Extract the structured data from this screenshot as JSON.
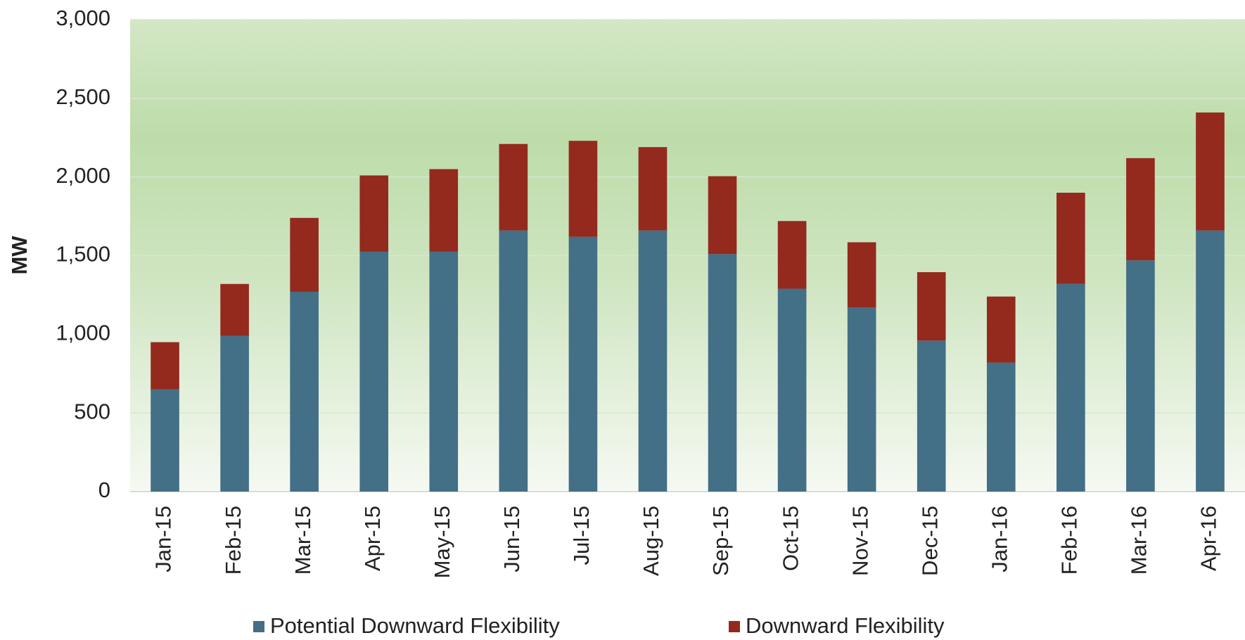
{
  "chart_data": {
    "type": "stacked_bar",
    "ylabel": "MW",
    "categories": [
      "Jan-15",
      "Feb-15",
      "Mar-15",
      "Apr-15",
      "May-15",
      "Jun-15",
      "Jul-15",
      "Aug-15",
      "Sep-15",
      "Oct-15",
      "Nov-15",
      "Dec-15",
      "Jan-16",
      "Feb-16",
      "Mar-16",
      "Apr-16"
    ],
    "series": [
      {
        "name": "Potential Downward Flexibility",
        "color": "#436f87",
        "values": [
          650,
          990,
          1270,
          1525,
          1525,
          1660,
          1620,
          1660,
          1510,
          1290,
          1170,
          960,
          820,
          1320,
          1470,
          1660
        ]
      },
      {
        "name": "Downward Flexibility",
        "color": "#94291e",
        "values": [
          300,
          330,
          470,
          485,
          525,
          550,
          610,
          530,
          495,
          430,
          415,
          435,
          420,
          580,
          650,
          750
        ]
      }
    ],
    "ylim": [
      0,
      3000
    ],
    "yticks": [
      0,
      500,
      {
        "value": 1000,
        "label": "1,000"
      },
      {
        "value": 1500,
        "label": "1,500"
      },
      {
        "value": 2000,
        "label": "2,000"
      },
      {
        "value": 2500,
        "label": "2,500"
      },
      {
        "value": 3000,
        "label": "3,000"
      }
    ],
    "grid": true,
    "legend": "bottom"
  }
}
